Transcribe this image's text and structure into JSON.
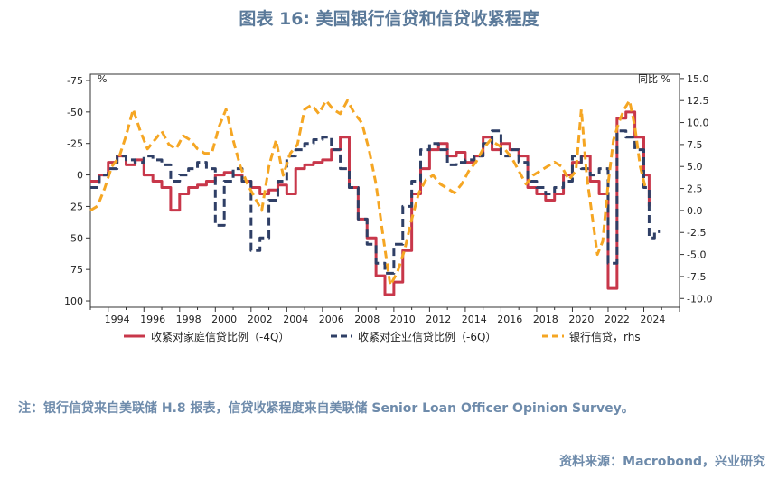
{
  "title": "图表 16: 美国银行信贷和信贷收紧程度",
  "note": "注：银行信贷来自美联储 H.8 报表，信贷收紧程度来自美联储 Senior Loan Officer Opinion Survey。",
  "source": "资料来源：Macrobond，兴业研究",
  "colors": {
    "household": "#c8374a",
    "business": "#2f3f66",
    "credit": "#f5a623",
    "title": "#5b7a9a"
  },
  "chart_data": {
    "type": "line",
    "left_unit": "%",
    "right_unit": "同比 %",
    "left_ticks": [
      -75,
      -50,
      -25,
      0,
      25,
      50,
      75,
      100
    ],
    "left_tick_labels": [
      "-75",
      "-50",
      "-25",
      "0",
      "25",
      "50",
      "75",
      "100"
    ],
    "left_range": [
      -80,
      105
    ],
    "left_inverted": true,
    "right_ticks": [
      15,
      12.5,
      10,
      7.5,
      5,
      2.5,
      0,
      -2.5,
      -5,
      -7.5,
      -10
    ],
    "right_tick_labels": [
      "15.0",
      "12.5",
      "10.0",
      "7.5",
      "5.0",
      "2.5",
      "0.0",
      "-2.5",
      "-5.0",
      "-7.5",
      "-10.0"
    ],
    "right_range": [
      -11,
      15.5
    ],
    "x_range": [
      1993,
      2026
    ],
    "x_ticks": [
      "1994",
      "1996",
      "1998",
      "2000",
      "2002",
      "2004",
      "2006",
      "2008",
      "2010",
      "2012",
      "2014",
      "2016",
      "2018",
      "2020",
      "2022",
      "2024"
    ],
    "legend_position": "bottom",
    "series": [
      {
        "name": "收紧对家庭信贷比例（-4Q）",
        "axis": "left",
        "style": "solid",
        "x": [
          1993.0,
          1993.5,
          1994.0,
          1994.5,
          1995.0,
          1995.5,
          1996.0,
          1996.5,
          1997.0,
          1997.5,
          1998.0,
          1998.5,
          1999.0,
          1999.5,
          2000.0,
          2000.5,
          2001.0,
          2001.5,
          2002.0,
          2002.5,
          2003.0,
          2003.5,
          2004.0,
          2004.5,
          2005.0,
          2005.5,
          2006.0,
          2006.5,
          2007.0,
          2007.5,
          2008.0,
          2008.5,
          2009.0,
          2009.5,
          2010.0,
          2010.5,
          2011.0,
          2011.5,
          2012.0,
          2012.5,
          2013.0,
          2013.5,
          2014.0,
          2014.5,
          2015.0,
          2015.5,
          2016.0,
          2016.5,
          2017.0,
          2017.5,
          2018.0,
          2018.5,
          2019.0,
          2019.5,
          2020.0,
          2020.5,
          2021.0,
          2021.5,
          2022.0,
          2022.5,
          2023.0,
          2023.5,
          2024.0,
          2024.3
        ],
        "values": [
          5,
          0,
          -10,
          -15,
          -8,
          -12,
          0,
          5,
          10,
          28,
          15,
          10,
          8,
          5,
          0,
          -2,
          0,
          5,
          10,
          15,
          12,
          8,
          15,
          -5,
          -8,
          -10,
          -12,
          -20,
          -30,
          10,
          35,
          50,
          80,
          95,
          85,
          60,
          15,
          -5,
          -20,
          -25,
          -15,
          -18,
          -10,
          -15,
          -30,
          -20,
          -25,
          -20,
          -15,
          10,
          15,
          20,
          15,
          0,
          -10,
          -15,
          5,
          15,
          90,
          -45,
          -50,
          -30,
          0,
          25
        ]
      },
      {
        "name": "收紧对企业信贷比例（-6Q）",
        "axis": "left",
        "style": "dashed",
        "x": [
          1993.0,
          1993.5,
          1994.0,
          1994.5,
          1995.0,
          1995.5,
          1996.0,
          1996.5,
          1997.0,
          1997.5,
          1998.0,
          1998.5,
          1999.0,
          1999.5,
          2000.0,
          2000.5,
          2001.0,
          2001.5,
          2002.0,
          2002.5,
          2003.0,
          2003.5,
          2004.0,
          2004.5,
          2005.0,
          2005.5,
          2006.0,
          2006.5,
          2007.0,
          2007.5,
          2008.0,
          2008.5,
          2009.0,
          2009.5,
          2010.0,
          2010.5,
          2011.0,
          2011.5,
          2012.0,
          2012.5,
          2013.0,
          2013.5,
          2014.0,
          2014.5,
          2015.0,
          2015.5,
          2016.0,
          2016.5,
          2017.0,
          2017.5,
          2018.0,
          2018.5,
          2019.0,
          2019.5,
          2020.0,
          2020.5,
          2021.0,
          2021.5,
          2022.0,
          2022.5,
          2023.0,
          2023.5,
          2024.0,
          2024.3,
          2024.6,
          2024.9
        ],
        "values": [
          10,
          0,
          -5,
          -15,
          -12,
          -10,
          -15,
          -12,
          -8,
          5,
          0,
          -5,
          -10,
          -5,
          40,
          5,
          -5,
          5,
          60,
          50,
          20,
          5,
          -15,
          -20,
          -25,
          -28,
          -30,
          -20,
          -5,
          10,
          35,
          55,
          70,
          78,
          55,
          25,
          5,
          -20,
          -25,
          -20,
          -8,
          -10,
          -12,
          -15,
          -25,
          -35,
          -15,
          -20,
          -10,
          5,
          10,
          15,
          10,
          5,
          -15,
          -5,
          0,
          -5,
          70,
          -35,
          -30,
          -20,
          10,
          50,
          45,
          45
        ]
      },
      {
        "name": "银行信贷，rhs",
        "axis": "right",
        "style": "dashed",
        "x": [
          1993.0,
          1993.4,
          1993.8,
          1994.2,
          1994.6,
          1995.0,
          1995.4,
          1995.8,
          1996.2,
          1996.6,
          1997.0,
          1997.4,
          1997.8,
          1998.2,
          1998.6,
          1999.0,
          1999.4,
          1999.8,
          2000.2,
          2000.6,
          2001.0,
          2001.4,
          2001.8,
          2002.2,
          2002.6,
          2003.0,
          2003.4,
          2003.8,
          2004.2,
          2004.6,
          2005.0,
          2005.4,
          2005.8,
          2006.2,
          2006.6,
          2007.0,
          2007.4,
          2007.8,
          2008.2,
          2008.6,
          2009.0,
          2009.4,
          2009.8,
          2010.2,
          2010.6,
          2011.0,
          2011.4,
          2011.8,
          2012.2,
          2012.6,
          2013.0,
          2013.4,
          2013.8,
          2014.2,
          2014.6,
          2015.0,
          2015.4,
          2015.8,
          2016.2,
          2016.6,
          2017.0,
          2017.4,
          2017.8,
          2018.2,
          2018.6,
          2019.0,
          2019.4,
          2019.8,
          2020.2,
          2020.5,
          2020.8,
          2021.1,
          2021.4,
          2021.7,
          2022.0,
          2022.3,
          2022.6,
          2022.9,
          2023.2,
          2023.5,
          2023.8,
          2024.1
        ],
        "values": [
          0.0,
          0.5,
          2.5,
          5.0,
          6.0,
          8.5,
          11.5,
          9.0,
          7.0,
          8.0,
          9.0,
          7.5,
          7.0,
          8.5,
          8.0,
          7.0,
          6.5,
          6.5,
          9.5,
          11.5,
          8.0,
          5.0,
          3.0,
          1.5,
          0.0,
          5.0,
          8.0,
          4.0,
          6.5,
          7.5,
          11.5,
          12.0,
          11.0,
          12.5,
          11.5,
          11.0,
          12.5,
          11.0,
          10.0,
          7.0,
          3.0,
          -3.0,
          -8.5,
          -7.0,
          -4.5,
          -1.0,
          2.0,
          3.5,
          4.0,
          3.0,
          2.5,
          2.0,
          3.0,
          4.5,
          5.5,
          7.0,
          8.0,
          7.5,
          7.0,
          6.0,
          4.5,
          3.0,
          4.0,
          4.5,
          5.0,
          5.5,
          5.0,
          3.5,
          4.5,
          11.5,
          4.0,
          -0.5,
          -5.0,
          -3.5,
          3.0,
          8.0,
          10.0,
          11.5,
          12.5,
          9.5,
          5.0,
          2.5
        ]
      }
    ]
  }
}
